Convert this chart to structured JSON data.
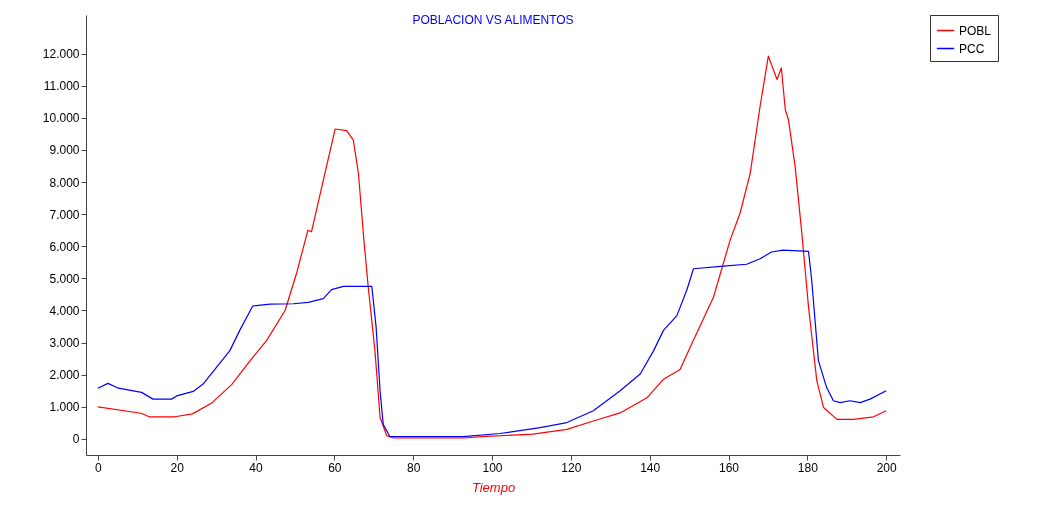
{
  "chart_data": {
    "type": "line",
    "title": "POBLACION VS ALIMENTOS",
    "xlabel": "Tiempo",
    "xlim": [
      -3,
      203.5
    ],
    "xticks": [
      0,
      20,
      40,
      60,
      80,
      100,
      120,
      140,
      160,
      180,
      200
    ],
    "ylim": [
      -500,
      13200
    ],
    "yticks": [
      0,
      {
        "value": 1000,
        "label": "1.000"
      },
      {
        "value": 2000,
        "label": "2.000"
      },
      {
        "value": 3000,
        "label": "3.000"
      },
      {
        "value": 4000,
        "label": "4.000"
      },
      {
        "value": 5000,
        "label": "5.000"
      },
      {
        "value": 6000,
        "label": "6.000"
      },
      {
        "value": 7000,
        "label": "7.000"
      },
      {
        "value": 8000,
        "label": "8.000"
      },
      {
        "value": 9000,
        "label": "9.000"
      },
      {
        "value": 10000,
        "label": "10.000"
      },
      {
        "value": 11000,
        "label": "11.000"
      },
      {
        "value": 12000,
        "label": "12.000"
      }
    ],
    "grid": false,
    "legend": "top right",
    "marker": "none",
    "line_style": "solid",
    "series": [
      {
        "name": "POBL",
        "color": "#ff0000",
        "x": [
          0,
          11,
          13,
          19.5,
          24,
          29,
          34,
          39.3,
          42.8,
          47.5,
          50.4,
          53.3,
          54.2,
          58,
          60.2,
          63.1,
          64.8,
          66.1,
          67.5,
          68.6,
          70.3,
          71.6,
          73.3,
          75,
          92.7,
          98.6,
          110.4,
          119,
          125.7,
          132.5,
          139.3,
          143.4,
          147.7,
          151,
          156.2,
          160.4,
          162.9,
          165.5,
          168,
          170.1,
          172.3,
          173.4,
          174.4,
          175.2,
          176.9,
          178.6,
          180.3,
          182.4,
          184.1,
          187.5,
          191.7,
          196.8,
          200
        ],
        "values": [
          1000,
          800,
          690,
          690,
          780,
          1130,
          1700,
          2540,
          3060,
          4000,
          5150,
          6500,
          6450,
          8480,
          9650,
          9600,
          9310,
          8280,
          6190,
          4730,
          2750,
          670,
          100,
          30,
          30,
          80,
          150,
          300,
          560,
          810,
          1280,
          1850,
          2160,
          3050,
          4420,
          6190,
          7020,
          8270,
          10350,
          11920,
          11190,
          11550,
          10250,
          9940,
          8480,
          6400,
          4100,
          1810,
          980,
          610,
          610,
          690,
          880
        ]
      },
      {
        "name": "PCC",
        "color": "#0000ff",
        "x": [
          0,
          2.6,
          5.2,
          11.1,
          14,
          18.7,
          20,
          24.2,
          26.7,
          30.1,
          33.5,
          36,
          39.3,
          43.7,
          49.6,
          53.4,
          57.2,
          59.3,
          62.3,
          69.5,
          70.6,
          71.6,
          72.4,
          74.1,
          92.7,
          102,
          112.2,
          119,
          125.7,
          132.5,
          137.6,
          141,
          143.5,
          146.9,
          149.4,
          151.1,
          158.7,
          164.6,
          168,
          170.9,
          173.8,
          180.3,
          181.1,
          182.8,
          184.9,
          186.6,
          188.3,
          190.8,
          193.4,
          195.9,
          200
        ],
        "values": [
          1580,
          1730,
          1580,
          1450,
          1240,
          1240,
          1340,
          1480,
          1710,
          2230,
          2750,
          3380,
          4140,
          4200,
          4210,
          4250,
          4370,
          4650,
          4750,
          4750,
          3480,
          1500,
          460,
          70,
          70,
          170,
          350,
          510,
          880,
          1500,
          2020,
          2750,
          3380,
          3840,
          4630,
          5300,
          5380,
          5440,
          5610,
          5820,
          5880,
          5840,
          4940,
          2440,
          1600,
          1190,
          1130,
          1190,
          1130,
          1240,
          1500
        ]
      }
    ]
  }
}
